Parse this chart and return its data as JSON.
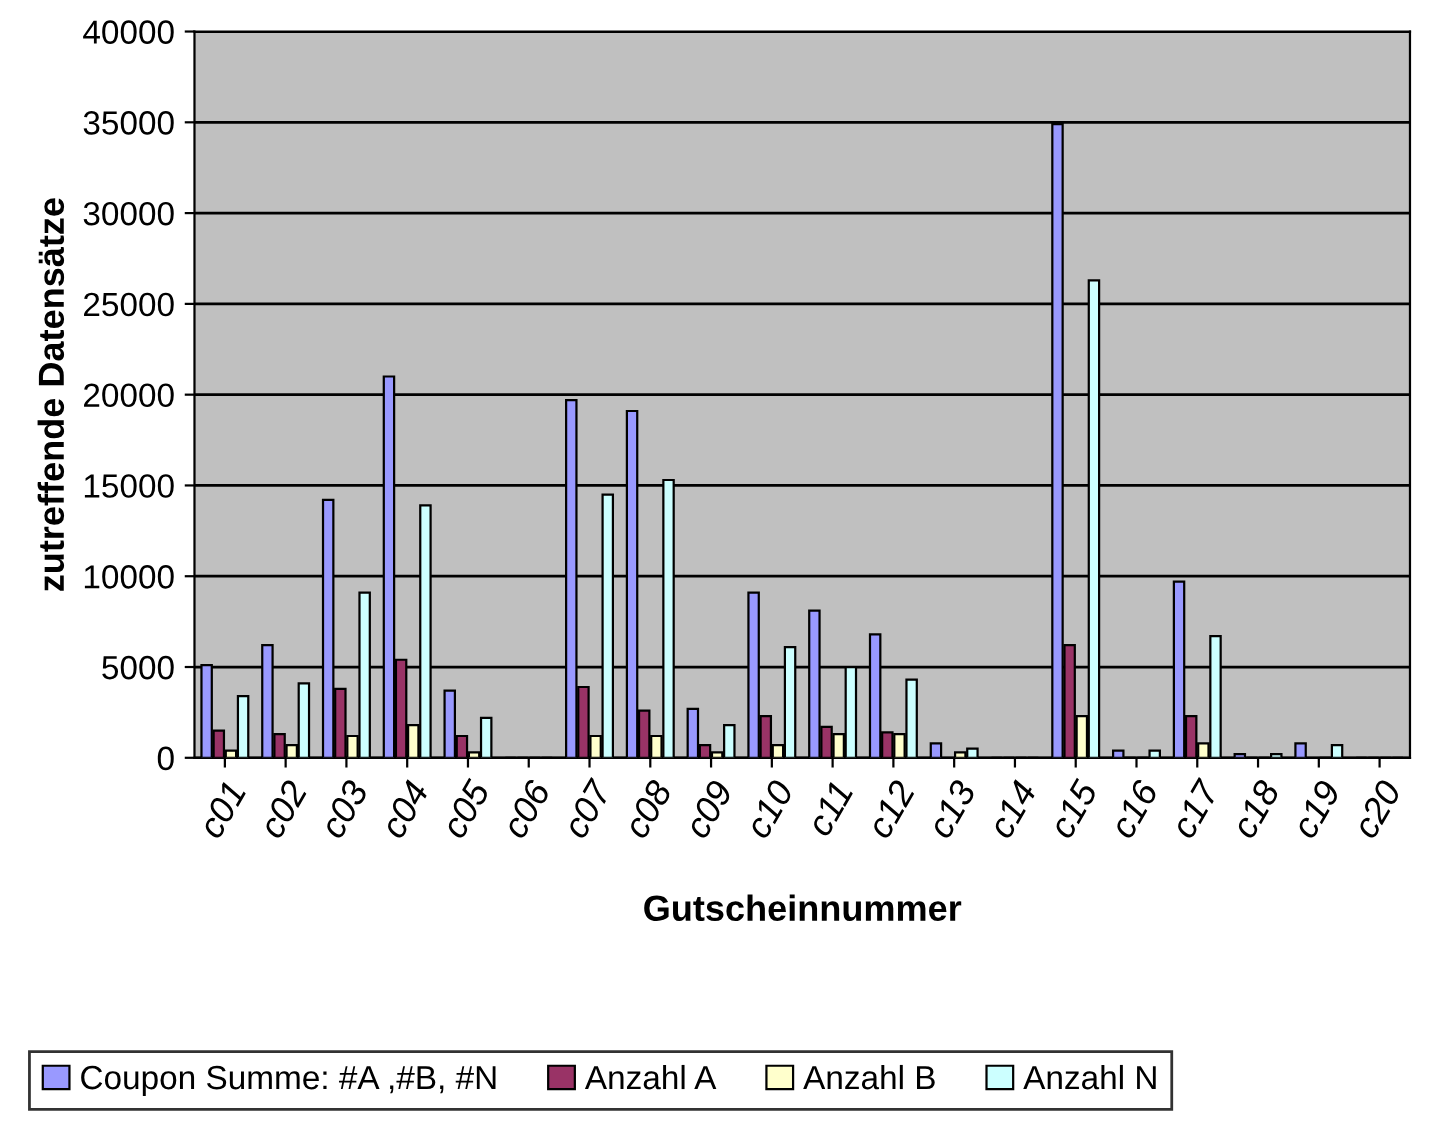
{
  "chart_data": {
    "type": "bar",
    "xlabel": "Gutscheinnummer",
    "ylabel": "zutreffende Datensätze",
    "categories": [
      "c01",
      "c02",
      "c03",
      "c04",
      "c05",
      "c06",
      "c07",
      "c08",
      "c09",
      "c10",
      "c11",
      "c12",
      "c13",
      "c14",
      "c15",
      "c16",
      "c17",
      "c18",
      "c19",
      "c20"
    ],
    "series": [
      {
        "name": "Coupon Summe: #A ,#B, #N",
        "color": "#9999ff",
        "values": [
          5100,
          6200,
          14200,
          21000,
          3700,
          0,
          19700,
          19100,
          2700,
          9100,
          8100,
          6800,
          800,
          0,
          34900,
          400,
          9700,
          200,
          800,
          0
        ]
      },
      {
        "name": "Anzahl A",
        "color": "#993366",
        "values": [
          1500,
          1300,
          3800,
          5400,
          1200,
          0,
          3900,
          2600,
          700,
          2300,
          1700,
          1400,
          null,
          0,
          6200,
          0,
          2300,
          0,
          null,
          0
        ]
      },
      {
        "name": "Anzahl B",
        "color": "#ffffcc",
        "values": [
          400,
          700,
          1200,
          1800,
          300,
          0,
          1200,
          1200,
          300,
          700,
          1300,
          1300,
          300,
          0,
          2300,
          0,
          800,
          0,
          0,
          0
        ]
      },
      {
        "name": "Anzahl N",
        "color": "#ccffff",
        "values": [
          3400,
          4100,
          9100,
          13900,
          2200,
          0,
          14500,
          15300,
          1800,
          6100,
          5000,
          4300,
          500,
          0,
          26300,
          400,
          6700,
          200,
          700,
          0
        ]
      }
    ],
    "ylim": [
      0,
      40000
    ],
    "yticks": [
      0,
      5000,
      10000,
      15000,
      20000,
      25000,
      30000,
      35000,
      40000
    ],
    "grid": "y",
    "legend": "bottom"
  }
}
